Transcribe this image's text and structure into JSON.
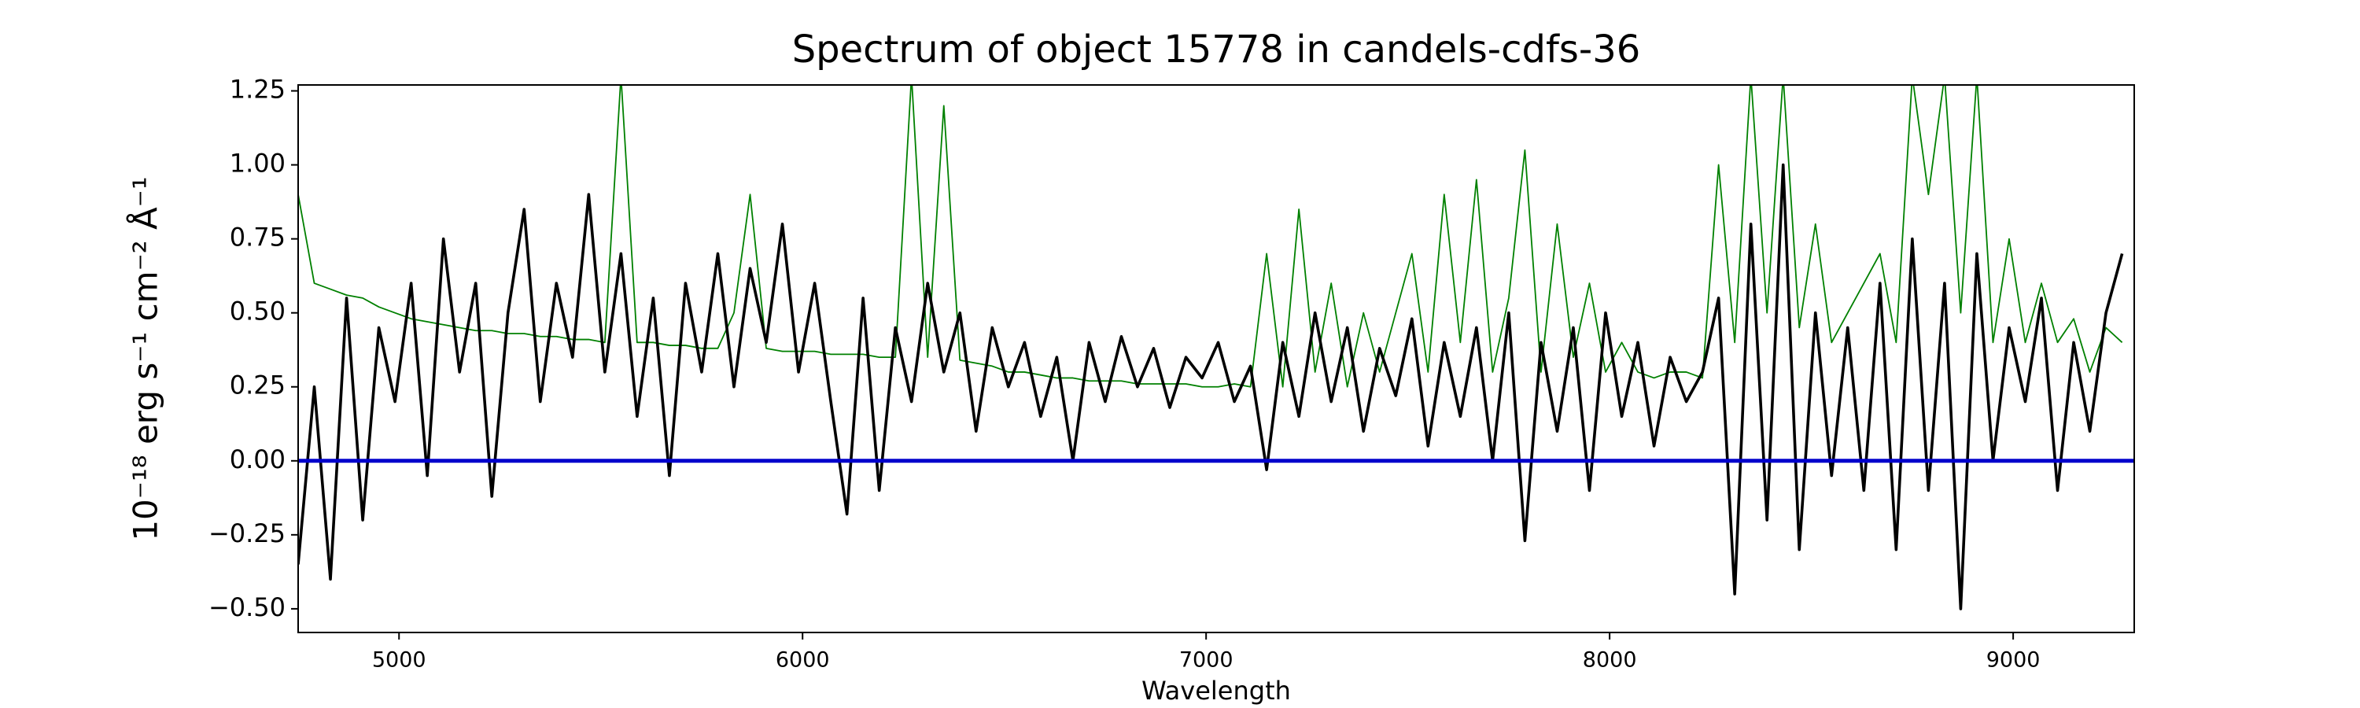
{
  "chart_data": {
    "type": "line",
    "title": "Spectrum of object 15778 in candels-cdfs-36",
    "xlabel": "Wavelength",
    "ylabel": "10⁻¹⁸ erg s⁻¹ cm⁻² Å⁻¹",
    "xlim": [
      4750,
      9300
    ],
    "ylim": [
      -0.58,
      1.27
    ],
    "xticks": [
      5000,
      6000,
      7000,
      8000,
      9000
    ],
    "yticks": [
      {
        "value": -0.5,
        "label": "−0.50"
      },
      {
        "value": -0.25,
        "label": "−0.25"
      },
      {
        "value": 0,
        "label": "0.00"
      },
      0.25,
      {
        "value": 0.5,
        "label": "0.50"
      },
      0.75,
      {
        "value": 1,
        "label": "1.00"
      },
      1.25
    ],
    "grid": false,
    "reference_line": {
      "value": 0,
      "color": "#0000cc"
    },
    "x": [
      4750,
      4790,
      4830,
      4870,
      4910,
      4950,
      4990,
      5030,
      5070,
      5110,
      5150,
      5190,
      5230,
      5270,
      5310,
      5350,
      5390,
      5430,
      5470,
      5510,
      5550,
      5590,
      5630,
      5670,
      5710,
      5750,
      5790,
      5830,
      5870,
      5910,
      5950,
      5990,
      6030,
      6070,
      6110,
      6150,
      6190,
      6230,
      6270,
      6310,
      6350,
      6390,
      6430,
      6470,
      6510,
      6550,
      6590,
      6630,
      6670,
      6710,
      6750,
      6790,
      6830,
      6870,
      6910,
      6950,
      6990,
      7030,
      7070,
      7110,
      7150,
      7190,
      7230,
      7270,
      7310,
      7350,
      7390,
      7430,
      7470,
      7510,
      7550,
      7590,
      7630,
      7670,
      7710,
      7750,
      7790,
      7830,
      7870,
      7910,
      7950,
      7990,
      8030,
      8070,
      8110,
      8150,
      8190,
      8230,
      8270,
      8310,
      8350,
      8390,
      8430,
      8470,
      8510,
      8550,
      8590,
      8630,
      8670,
      8710,
      8750,
      8790,
      8830,
      8870,
      8910,
      8950,
      8990,
      9030,
      9070,
      9110,
      9150,
      9190,
      9230,
      9270
    ],
    "series": [
      {
        "color": "#008000",
        "values": [
          0.9,
          0.6,
          0.58,
          0.56,
          0.55,
          0.52,
          0.5,
          0.48,
          0.47,
          0.46,
          0.45,
          0.44,
          0.44,
          0.43,
          0.43,
          0.42,
          0.42,
          0.41,
          0.41,
          0.4,
          1.3,
          0.4,
          0.4,
          0.39,
          0.39,
          0.38,
          0.38,
          0.5,
          0.9,
          0.38,
          0.37,
          0.37,
          0.37,
          0.36,
          0.36,
          0.36,
          0.35,
          0.35,
          1.3,
          0.35,
          1.2,
          0.34,
          0.33,
          0.32,
          0.3,
          0.3,
          0.29,
          0.28,
          0.28,
          0.27,
          0.27,
          0.27,
          0.26,
          0.26,
          0.26,
          0.26,
          0.25,
          0.25,
          0.26,
          0.25,
          0.7,
          0.25,
          0.85,
          0.3,
          0.6,
          0.25,
          0.5,
          0.3,
          0.5,
          0.7,
          0.3,
          0.9,
          0.4,
          0.95,
          0.3,
          0.55,
          1.05,
          0.3,
          0.8,
          0.35,
          0.6,
          0.3,
          0.4,
          0.3,
          0.28,
          0.3,
          0.3,
          0.28,
          1.0,
          0.4,
          1.3,
          0.5,
          1.3,
          0.45,
          0.8,
          0.4,
          0.5,
          0.6,
          0.7,
          0.4,
          1.3,
          0.9,
          1.3,
          0.5,
          1.3,
          0.4,
          0.75,
          0.4,
          0.6,
          0.4,
          0.48,
          0.3,
          0.45,
          0.4
        ]
      },
      {
        "color": "#000000",
        "values": [
          -0.35,
          0.25,
          -0.4,
          0.55,
          -0.2,
          0.45,
          0.2,
          0.6,
          -0.05,
          0.75,
          0.3,
          0.6,
          -0.12,
          0.5,
          0.85,
          0.2,
          0.6,
          0.35,
          0.9,
          0.3,
          0.7,
          0.15,
          0.55,
          -0.05,
          0.6,
          0.3,
          0.7,
          0.25,
          0.65,
          0.4,
          0.8,
          0.3,
          0.6,
          0.2,
          -0.18,
          0.55,
          -0.1,
          0.45,
          0.2,
          0.6,
          0.3,
          0.5,
          0.1,
          0.45,
          0.25,
          0.4,
          0.15,
          0.35,
          0.0,
          0.4,
          0.2,
          0.42,
          0.25,
          0.38,
          0.18,
          0.35,
          0.28,
          0.4,
          0.2,
          0.32,
          -0.03,
          0.4,
          0.15,
          0.5,
          0.2,
          0.45,
          0.1,
          0.38,
          0.22,
          0.48,
          0.05,
          0.4,
          0.15,
          0.45,
          0.0,
          0.5,
          -0.27,
          0.4,
          0.1,
          0.45,
          -0.1,
          0.5,
          0.15,
          0.4,
          0.05,
          0.35,
          0.2,
          0.3,
          0.55,
          -0.45,
          0.8,
          -0.2,
          1.0,
          -0.3,
          0.5,
          -0.05,
          0.45,
          -0.1,
          0.6,
          -0.3,
          0.75,
          -0.1,
          0.6,
          -0.5,
          0.7,
          0.0,
          0.45,
          0.2,
          0.55,
          -0.1,
          0.4,
          0.1,
          0.5,
          0.7
        ]
      }
    ]
  }
}
